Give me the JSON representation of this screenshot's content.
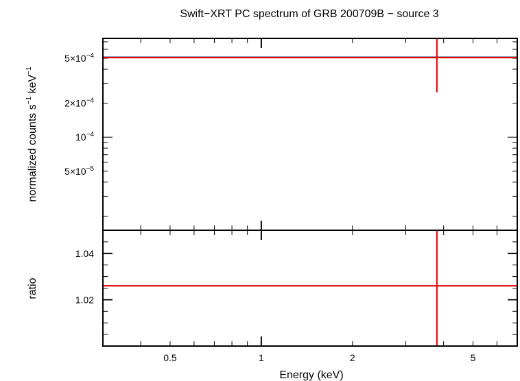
{
  "chart_data": [
    {
      "type": "scatter",
      "title": "Swift−XRT PC spectrum of GRB 200709B − source 3",
      "ylabel_main": "normalized counts s",
      "ylabel_sup1": "−1",
      "ylabel_mid": " keV",
      "ylabel_sup2": "−1",
      "x_scale": "log",
      "y_scale": "log",
      "xlim": [
        0.3,
        7.0
      ],
      "ylim": [
        1.5e-05,
        0.00075
      ],
      "y_ticks": [
        {
          "value": 0.0005,
          "mant": "5×10",
          "exp": "−4"
        },
        {
          "value": 0.0002,
          "mant": "2×10",
          "exp": "−4"
        },
        {
          "value": 0.0001,
          "mant": "10",
          "exp": "−4"
        },
        {
          "value": 5e-05,
          "mant": "5×10",
          "exp": "−5"
        }
      ],
      "series": [
        {
          "points": [
            {
              "x": 3.8,
              "y": 0.00051,
              "xerr": [
                0.3,
                7.0
              ],
              "yerr": [
                0.00025,
                0.00075
              ]
            }
          ],
          "color": "#e00000"
        }
      ],
      "model_line": {
        "y": 0.00051,
        "color": "#000000"
      }
    },
    {
      "type": "scatter",
      "ylabel": "ratio",
      "xlabel": "Energy (keV)",
      "x_scale": "log",
      "xlim": [
        0.3,
        7.0
      ],
      "ylim": [
        1.0,
        1.05
      ],
      "y_ticks": [
        {
          "value": 1.02,
          "label": "1.02"
        },
        {
          "value": 1.04,
          "label": "1.04"
        }
      ],
      "x_ticks": [
        {
          "value": 0.5,
          "label": "0.5"
        },
        {
          "value": 1,
          "label": "1"
        },
        {
          "value": 2,
          "label": "2"
        },
        {
          "value": 5,
          "label": "5"
        }
      ],
      "series": [
        {
          "points": [
            {
              "x": 3.8,
              "y": 1.026,
              "xerr": [
                0.3,
                7.0
              ],
              "yerr": [
                1.0,
                1.05
              ]
            }
          ],
          "color": "#e00000"
        }
      ]
    }
  ]
}
